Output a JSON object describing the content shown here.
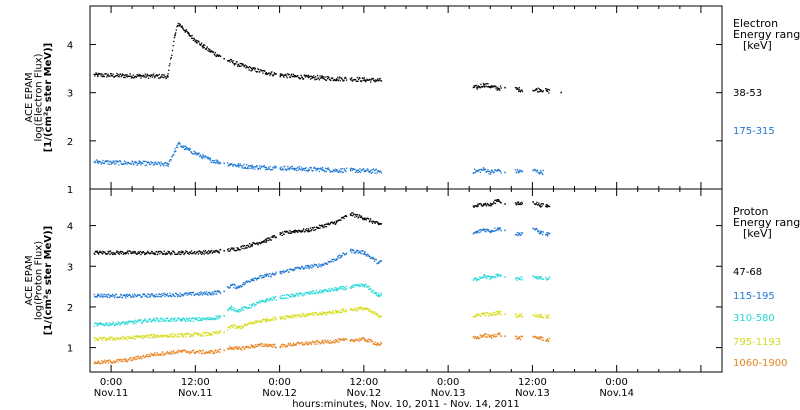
{
  "chart_data": [
    {
      "type": "scatter",
      "panel": "electron",
      "ylabel_lines": [
        "ACE EPAM",
        "log(Electron Flux)",
        "[1/(cm²s ster MeV)]"
      ],
      "ylim": [
        1,
        4.8
      ],
      "yticks": [
        1,
        2,
        3,
        4
      ],
      "legend_title": [
        "Electron",
        "Energy ranges",
        "[keV]"
      ],
      "series": [
        {
          "name": "38-53",
          "color": "#000000",
          "x": [
            -2.0,
            0,
            4,
            8,
            9,
            9.5,
            10,
            10.5,
            11,
            12,
            13,
            14,
            15,
            16,
            18,
            20,
            22,
            24,
            26,
            28,
            30,
            32,
            34,
            36,
            38,
            52,
            53,
            54,
            55,
            56,
            58,
            60,
            61,
            62,
            64
          ],
          "y": [
            3.38,
            3.37,
            3.36,
            3.35,
            4.2,
            4.45,
            4.38,
            4.3,
            4.22,
            4.1,
            3.98,
            3.88,
            3.8,
            3.72,
            3.6,
            3.5,
            3.43,
            3.38,
            3.35,
            3.33,
            3.32,
            3.3,
            3.3,
            3.28,
            3.27,
            3.12,
            3.18,
            3.14,
            3.1,
            3.12,
            3.08,
            3.06,
            3.08,
            3.05,
            3.02
          ]
        },
        {
          "name": "175-315",
          "color": "#1f77d4",
          "x": [
            -2.0,
            0,
            4,
            8,
            9,
            9.5,
            10,
            10.5,
            11,
            12,
            13,
            14,
            15,
            16,
            18,
            20,
            22,
            24,
            26,
            28,
            30,
            32,
            34,
            36,
            38,
            52,
            53,
            54,
            55,
            56,
            58,
            60,
            61
          ],
          "y": [
            1.58,
            1.56,
            1.55,
            1.52,
            1.8,
            1.95,
            1.9,
            1.86,
            1.82,
            1.75,
            1.68,
            1.62,
            1.58,
            1.55,
            1.5,
            1.47,
            1.46,
            1.45,
            1.44,
            1.42,
            1.42,
            1.4,
            1.4,
            1.39,
            1.38,
            1.38,
            1.42,
            1.36,
            1.4,
            1.36,
            1.38,
            1.4,
            1.36
          ]
        }
      ]
    },
    {
      "type": "scatter",
      "panel": "proton",
      "xlabel": "hours:minutes, Nov. 10, 2011 - Nov. 14, 2011",
      "ylabel_lines": [
        "ACE EPAM",
        "log(Proton Flux)",
        "[1/(cm²s ster MeV)]"
      ],
      "ylim": [
        0.4,
        4.9
      ],
      "yticks": [
        1,
        2,
        3,
        4
      ],
      "legend_title": [
        "Proton",
        "Energy ranges",
        "[keV]"
      ],
      "xlim": [
        -3,
        87
      ],
      "xticks": [
        {
          "x": 0,
          "time": "0:00",
          "date": "Nov.11"
        },
        {
          "x": 12,
          "time": "12:00",
          "date": "Nov.11"
        },
        {
          "x": 24,
          "time": "0:00",
          "date": "Nov.12"
        },
        {
          "x": 36,
          "time": "12:00",
          "date": "Nov.12"
        },
        {
          "x": 48,
          "time": "0:00",
          "date": "Nov.13"
        },
        {
          "x": 60,
          "time": "12:00",
          "date": "Nov.13"
        },
        {
          "x": 72,
          "time": "0:00",
          "date": "Nov.14"
        }
      ],
      "series": [
        {
          "name": "47-68",
          "color": "#000000",
          "x": [
            -2.0,
            2,
            6,
            10,
            14,
            16,
            18,
            20,
            22,
            24,
            26,
            28,
            30,
            32,
            34,
            36,
            38,
            52,
            53,
            54,
            55,
            56,
            58,
            60,
            61,
            62
          ],
          "y": [
            3.35,
            3.35,
            3.34,
            3.35,
            3.36,
            3.4,
            3.45,
            3.55,
            3.65,
            3.8,
            3.88,
            3.9,
            4.0,
            4.1,
            4.3,
            4.2,
            4.05,
            4.5,
            4.55,
            4.52,
            4.65,
            4.55,
            4.55,
            4.6,
            4.52,
            4.5
          ]
        },
        {
          "name": "115-195",
          "color": "#1f77d4",
          "x": [
            -2.0,
            2,
            6,
            10,
            14,
            16,
            17,
            18,
            20,
            22,
            24,
            26,
            28,
            30,
            32,
            34,
            36,
            38,
            52,
            53,
            54,
            55,
            56,
            58,
            60,
            61,
            62
          ],
          "y": [
            2.3,
            2.28,
            2.3,
            2.32,
            2.35,
            2.4,
            2.55,
            2.5,
            2.7,
            2.78,
            2.85,
            2.95,
            3.0,
            3.05,
            3.2,
            3.4,
            3.35,
            3.1,
            3.85,
            3.92,
            3.88,
            3.95,
            3.9,
            3.8,
            3.95,
            3.85,
            3.8
          ]
        },
        {
          "name": "310-580",
          "color": "#22d8d8",
          "x": [
            -2.0,
            2,
            6,
            10,
            14,
            16,
            17,
            18,
            20,
            22,
            24,
            26,
            28,
            30,
            32,
            34,
            36,
            38,
            52,
            53,
            54,
            55,
            56,
            58,
            60,
            61,
            62
          ],
          "y": [
            1.58,
            1.62,
            1.7,
            1.7,
            1.72,
            1.8,
            2.0,
            1.92,
            2.05,
            2.18,
            2.25,
            2.3,
            2.35,
            2.4,
            2.45,
            2.5,
            2.55,
            2.3,
            2.7,
            2.78,
            2.72,
            2.8,
            2.75,
            2.7,
            2.78,
            2.72,
            2.7
          ]
        },
        {
          "name": "795-1193",
          "color": "#d6dc1a",
          "x": [
            -2.0,
            2,
            6,
            10,
            14,
            16,
            17,
            18,
            20,
            22,
            24,
            26,
            28,
            30,
            32,
            34,
            36,
            38,
            52,
            53,
            54,
            55,
            56,
            58,
            60,
            61,
            62
          ],
          "y": [
            1.22,
            1.25,
            1.3,
            1.32,
            1.35,
            1.4,
            1.55,
            1.5,
            1.62,
            1.7,
            1.75,
            1.8,
            1.82,
            1.85,
            1.9,
            1.95,
            1.98,
            1.8,
            1.8,
            1.85,
            1.82,
            1.88,
            1.84,
            1.8,
            1.82,
            1.8,
            1.78
          ]
        },
        {
          "name": "1060-1900",
          "color": "#e8821e",
          "x": [
            -2.0,
            2,
            6,
            10,
            14,
            16,
            17,
            18,
            20,
            22,
            24,
            26,
            28,
            30,
            32,
            34,
            36,
            38,
            52,
            53,
            54,
            55,
            56,
            58,
            60,
            61,
            62
          ],
          "y": [
            0.65,
            0.7,
            0.85,
            0.92,
            0.9,
            0.95,
            1.02,
            0.98,
            1.05,
            1.08,
            1.05,
            1.1,
            1.12,
            1.15,
            1.18,
            1.2,
            1.22,
            1.1,
            1.25,
            1.32,
            1.28,
            1.35,
            1.3,
            1.25,
            1.28,
            1.25,
            1.2
          ]
        }
      ]
    }
  ]
}
